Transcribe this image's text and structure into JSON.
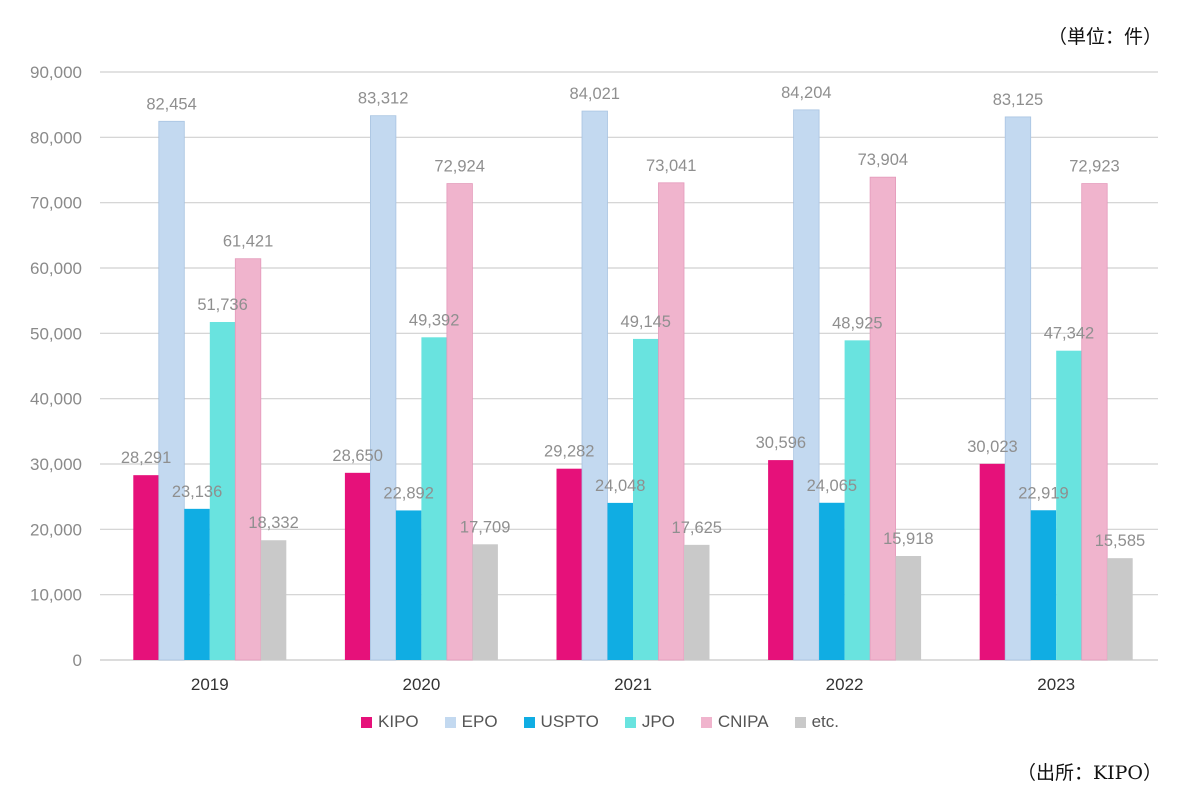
{
  "unit_note": "（単位：件）",
  "source_note": "（出所：KIPO）",
  "chart_data": {
    "type": "bar",
    "title": "",
    "xlabel": "",
    "ylabel": "",
    "ylim": [
      0,
      90000
    ],
    "yticks": [
      0,
      10000,
      20000,
      30000,
      40000,
      50000,
      60000,
      70000,
      80000,
      90000
    ],
    "ytick_labels": [
      "0",
      "10,000",
      "20,000",
      "30,000",
      "40,000",
      "50,000",
      "60,000",
      "70,000",
      "80,000",
      "90,000"
    ],
    "grid": true,
    "legend_position": "bottom",
    "categories": [
      "2019",
      "2020",
      "2021",
      "2022",
      "2023"
    ],
    "series": [
      {
        "name": "KIPO",
        "color": "#e6117a",
        "values": [
          28291,
          28650,
          29282,
          30596,
          30023
        ],
        "labels": [
          "28,291",
          "28,650",
          "29,282",
          "30,596",
          "30,023"
        ]
      },
      {
        "name": "EPO",
        "color": "#c3d9f0",
        "values": [
          82454,
          83312,
          84021,
          84204,
          83125
        ],
        "labels": [
          "82,454",
          "83,312",
          "84,021",
          "84,204",
          "83,125"
        ]
      },
      {
        "name": "USPTO",
        "color": "#10ade3",
        "values": [
          23136,
          22892,
          24048,
          24065,
          22919
        ],
        "labels": [
          "23,136",
          "22,892",
          "24,048",
          "24,065",
          "22,919"
        ]
      },
      {
        "name": "JPO",
        "color": "#69e3df",
        "values": [
          51736,
          49392,
          49145,
          48925,
          47342
        ],
        "labels": [
          "51,736",
          "49,392",
          "49,145",
          "48,925",
          "47,342"
        ]
      },
      {
        "name": "CNIPA",
        "color": "#f0b4cd",
        "values": [
          61421,
          72924,
          73041,
          73904,
          72923
        ],
        "labels": [
          "61,421",
          "72,924",
          "73,041",
          "73,904",
          "72,923"
        ]
      },
      {
        "name": "etc.",
        "color": "#c9c9c9",
        "values": [
          18332,
          17709,
          17625,
          15918,
          15585
        ],
        "labels": [
          "18,332",
          "17,709",
          "17,625",
          "15,918",
          "15,585"
        ]
      }
    ]
  }
}
